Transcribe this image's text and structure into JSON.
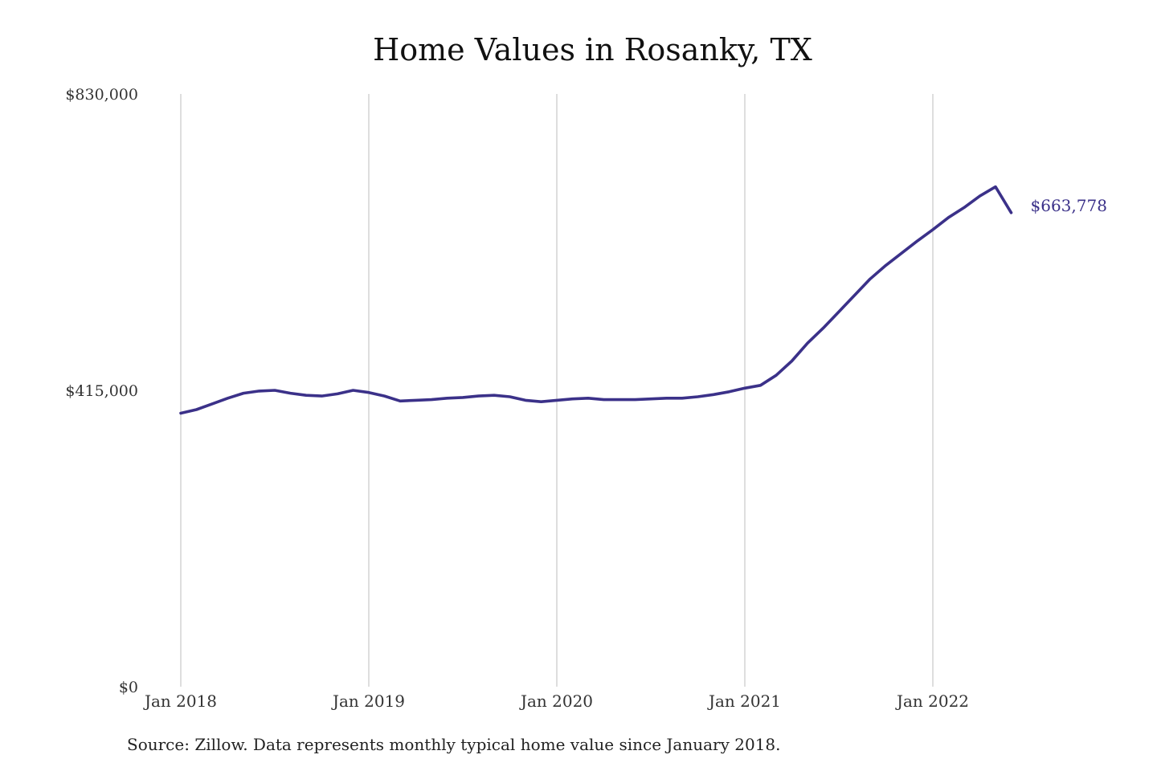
{
  "chart_data": {
    "type": "line",
    "title": "Home Values in Rosanky, TX",
    "source": "Source: Zillow. Data represents monthly typical home value since January 2018.",
    "ylim": [
      0,
      830000
    ],
    "y_ticks": [
      {
        "value": 0,
        "label": "$0"
      },
      {
        "value": 415000,
        "label": "$415,000"
      },
      {
        "value": 830000,
        "label": "$830,000"
      }
    ],
    "x_ticks": [
      {
        "value": "2018-01",
        "label": "Jan 2018"
      },
      {
        "value": "2019-01",
        "label": "Jan 2019"
      },
      {
        "value": "2020-01",
        "label": "Jan 2020"
      },
      {
        "value": "2021-01",
        "label": "Jan 2021"
      },
      {
        "value": "2022-01",
        "label": "Jan 2022"
      }
    ],
    "xlim": [
      "2018-01",
      "2022-06"
    ],
    "grid": {
      "vertical": true,
      "horizontal": false
    },
    "series_color": "#3b3189",
    "series": [
      {
        "x": [
          "2018-01",
          "2018-02",
          "2018-03",
          "2018-04",
          "2018-05",
          "2018-06",
          "2018-07",
          "2018-08",
          "2018-09",
          "2018-10",
          "2018-11",
          "2018-12",
          "2019-01",
          "2019-02",
          "2019-03",
          "2019-04",
          "2019-05",
          "2019-06",
          "2019-07",
          "2019-08",
          "2019-09",
          "2019-10",
          "2019-11",
          "2019-12",
          "2020-01",
          "2020-02",
          "2020-03",
          "2020-04",
          "2020-05",
          "2020-06",
          "2020-07",
          "2020-08",
          "2020-09",
          "2020-10",
          "2020-11",
          "2020-12",
          "2021-01",
          "2021-02",
          "2021-03",
          "2021-04",
          "2021-05",
          "2021-06",
          "2021-07",
          "2021-08",
          "2021-09",
          "2021-10",
          "2021-11",
          "2021-12",
          "2022-01",
          "2022-02",
          "2022-03",
          "2022-04",
          "2022-05",
          "2022-06"
        ],
        "values": [
          383000,
          388000,
          396000,
          404000,
          411000,
          414000,
          415000,
          411000,
          408000,
          407000,
          410000,
          415000,
          412000,
          407000,
          400000,
          401000,
          402000,
          404000,
          405000,
          407000,
          408000,
          406000,
          401000,
          399000,
          401000,
          403000,
          404000,
          402000,
          402000,
          402000,
          403000,
          404000,
          404000,
          406000,
          409000,
          413000,
          418000,
          422000,
          436000,
          456000,
          481000,
          502000,
          525000,
          548000,
          571000,
          590000,
          607000,
          624000,
          640000,
          657000,
          671000,
          687000,
          700000,
          663778
        ]
      }
    ],
    "end_label": "$663,778"
  }
}
